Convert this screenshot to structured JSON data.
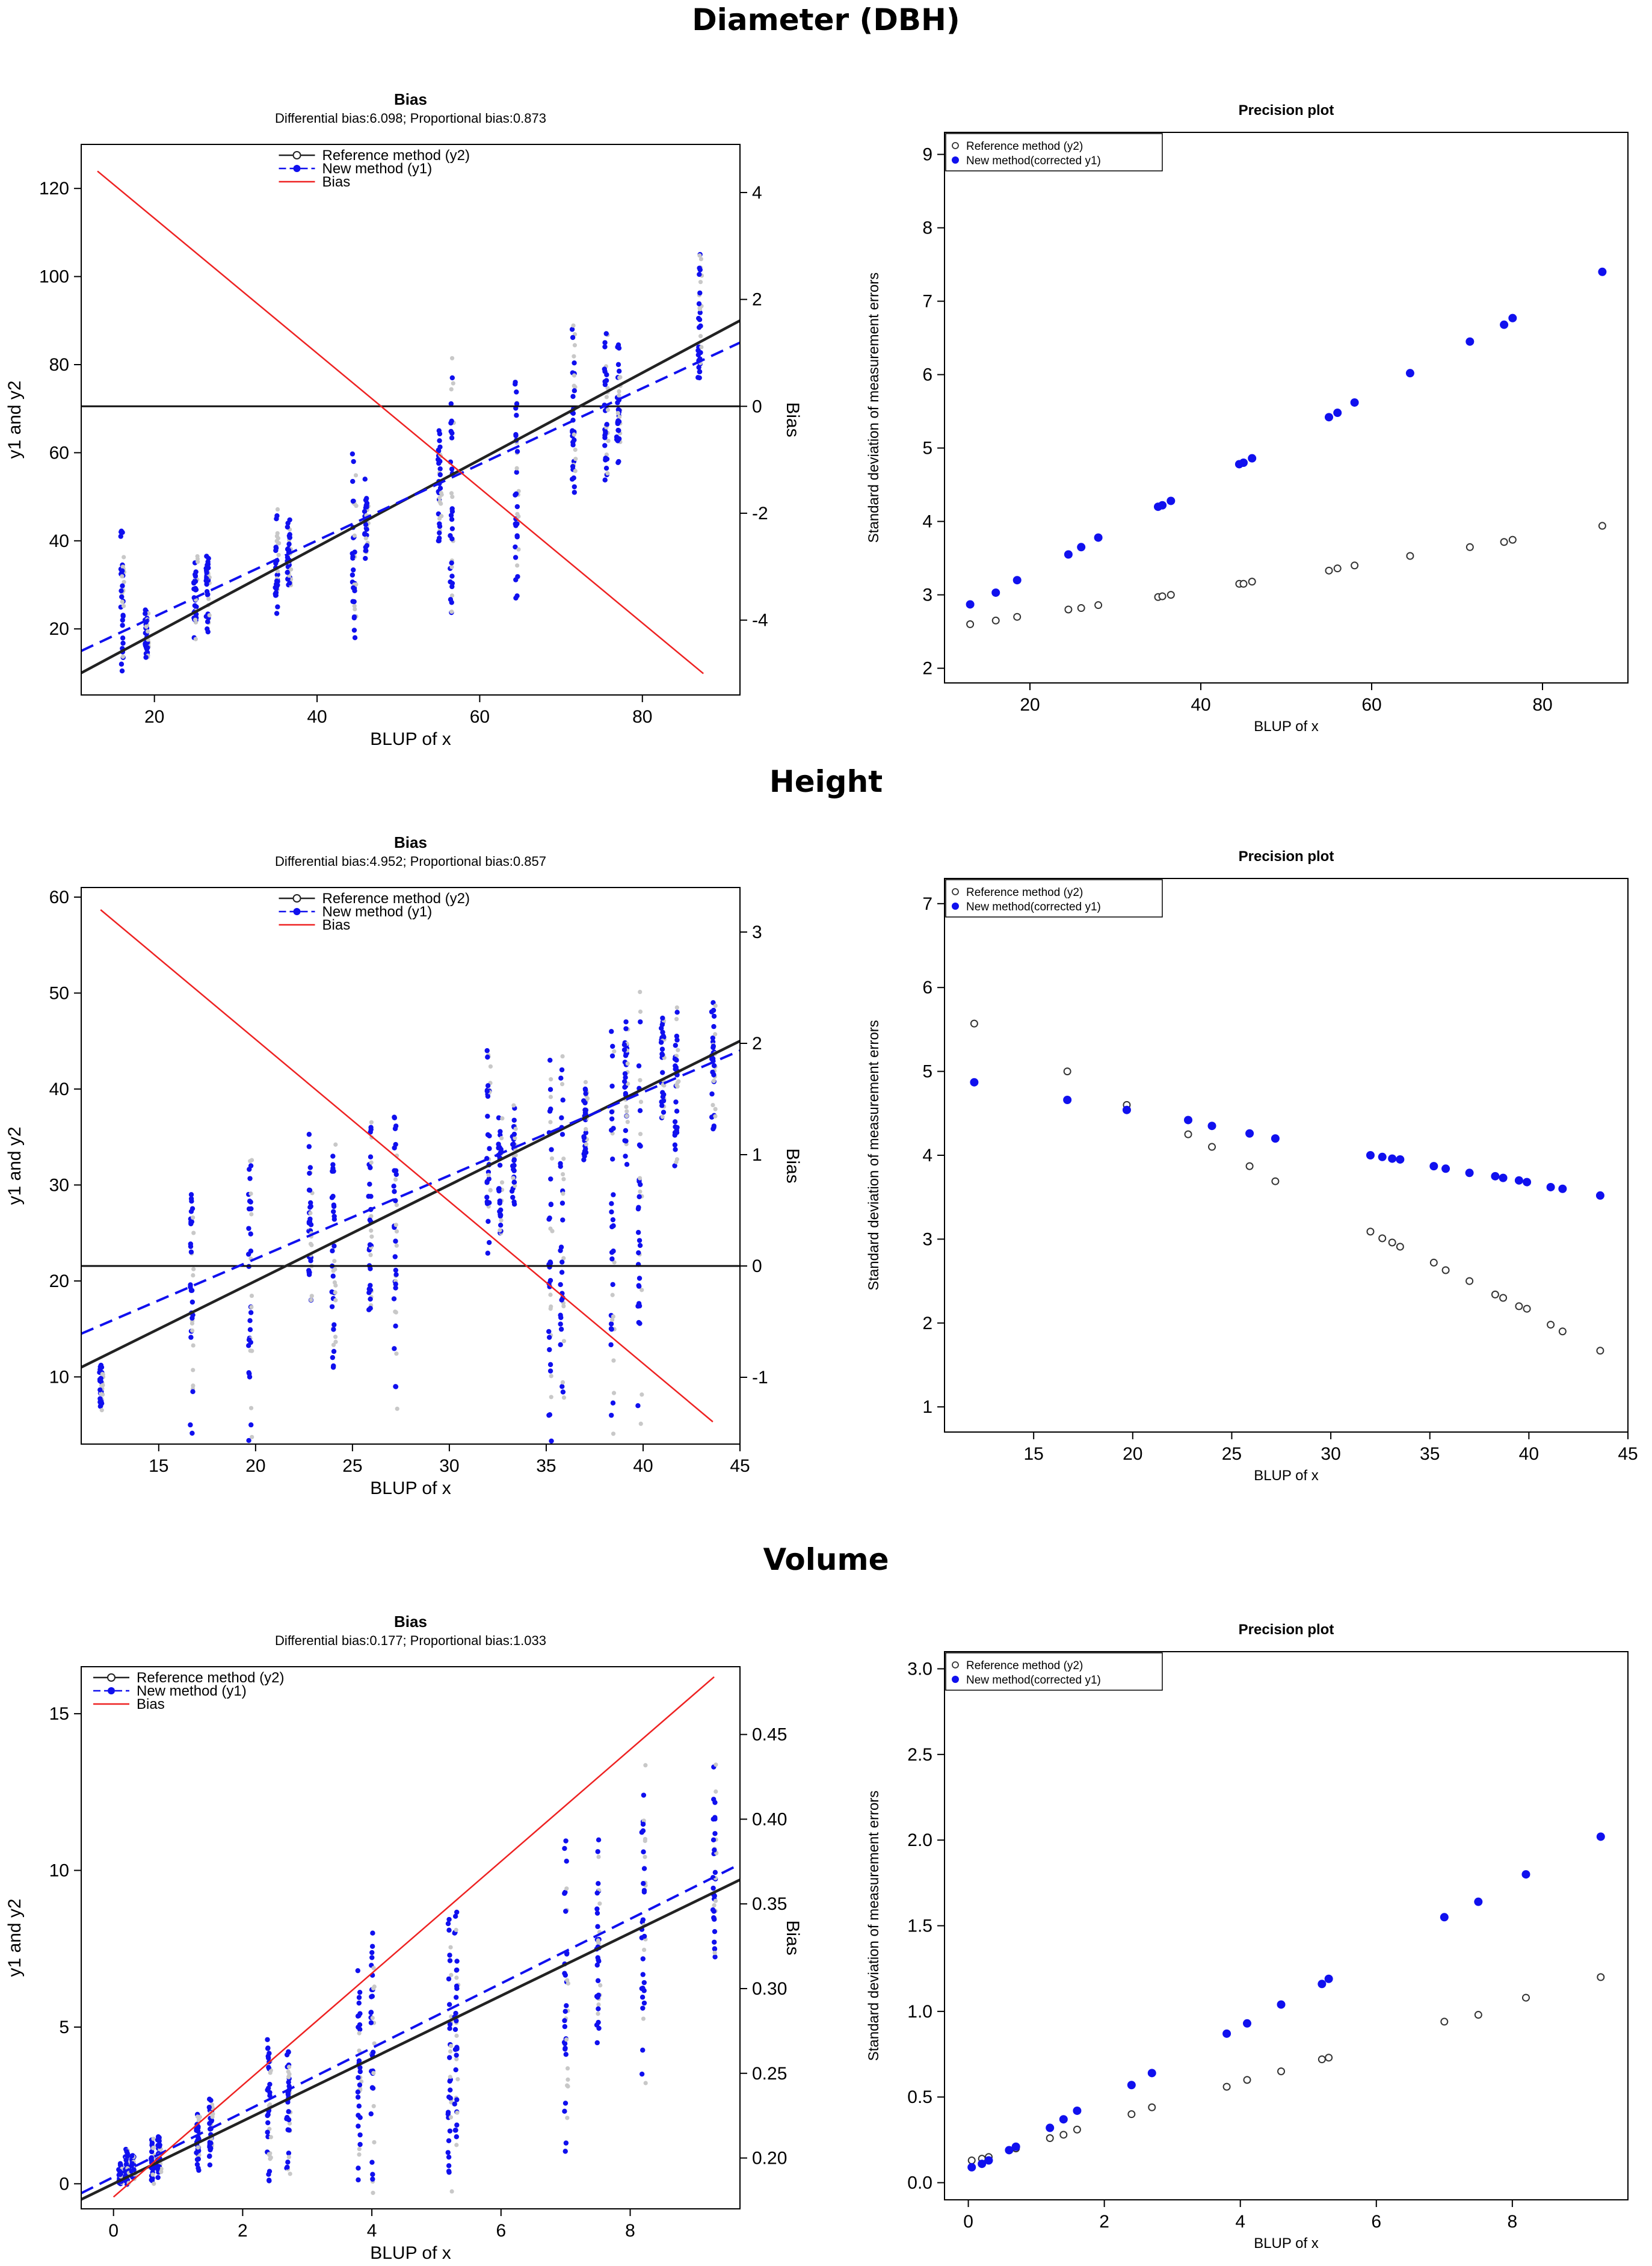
{
  "sections": [
    {
      "title": "Diameter (DBH)"
    },
    {
      "title": "Height"
    },
    {
      "title": "Volume"
    }
  ],
  "colors": {
    "reference": "#222222",
    "new": "#1010ee",
    "bias": "#ee2222",
    "raw_points": "#c8c8c8"
  },
  "chart_data": [
    {
      "type": "scatter",
      "panel": "diameter-bias",
      "title": "Bias",
      "subtitle": "Differential bias:6.098; Proportional bias:0.873",
      "xlabel": "BLUP of x",
      "ylabel": "y1 and y2",
      "y2label": "Bias",
      "xlim": [
        11,
        92
      ],
      "ylim": [
        5,
        130
      ],
      "y2lim": [
        -5.4,
        4.9
      ],
      "xticks": [
        20,
        40,
        60,
        80
      ],
      "yticks": [
        20,
        40,
        60,
        80,
        100,
        120
      ],
      "y2ticks": [
        -4,
        -2,
        0,
        2,
        4
      ],
      "legend": [
        "Reference method (y2)",
        "New method (y1)",
        "Bias"
      ],
      "legend_position": "top-center",
      "clusters": [
        {
          "x": 16,
          "y_min": 12,
          "y_max": 42
        },
        {
          "x": 19,
          "y_min": 14,
          "y_max": 24
        },
        {
          "x": 25,
          "y_min": 18,
          "y_max": 35
        },
        {
          "x": 26.5,
          "y_min": 20,
          "y_max": 36
        },
        {
          "x": 35,
          "y_min": 25,
          "y_max": 45
        },
        {
          "x": 36.5,
          "y_min": 30,
          "y_max": 44
        },
        {
          "x": 44.5,
          "y_min": 18,
          "y_max": 58
        },
        {
          "x": 46,
          "y_min": 36,
          "y_max": 54
        },
        {
          "x": 55,
          "y_min": 40,
          "y_max": 65
        },
        {
          "x": 56.5,
          "y_min": 26,
          "y_max": 77
        },
        {
          "x": 64.5,
          "y_min": 27,
          "y_max": 76
        },
        {
          "x": 71.5,
          "y_min": 51,
          "y_max": 88
        },
        {
          "x": 75.5,
          "y_min": 55,
          "y_max": 85
        },
        {
          "x": 77,
          "y_min": 58,
          "y_max": 84
        },
        {
          "x": 87,
          "y_min": 77,
          "y_max": 105
        }
      ],
      "reference_line": {
        "x": [
          11,
          92
        ],
        "y": [
          10,
          90
        ]
      },
      "new_line": {
        "x": [
          11,
          92
        ],
        "y": [
          15,
          85
        ]
      },
      "bias_line": {
        "x": [
          13,
          87.5
        ],
        "y": [
          4.4,
          -5.0
        ]
      },
      "zero_line": 0
    },
    {
      "type": "scatter",
      "panel": "diameter-precision",
      "title": "Precision plot",
      "xlabel": "BLUP of x",
      "ylabel": "Standard deviation of measurement errors",
      "xlim": [
        10,
        90
      ],
      "ylim": [
        1.8,
        9.3
      ],
      "xticks": [
        20,
        40,
        60,
        80
      ],
      "yticks": [
        2,
        3,
        4,
        5,
        6,
        7,
        8,
        9
      ],
      "legend": [
        "Reference method (y2)",
        "New method(corrected y1)"
      ],
      "legend_position": "top-left",
      "series": [
        {
          "name": "Reference method (y2)",
          "x": [
            13,
            16,
            18.5,
            24.5,
            26,
            28,
            35,
            35.5,
            36.5,
            44.5,
            45,
            46,
            55,
            56,
            58,
            64.5,
            71.5,
            75.5,
            76.5,
            87
          ],
          "y": [
            2.6,
            2.65,
            2.7,
            2.8,
            2.82,
            2.86,
            2.97,
            2.98,
            3.0,
            3.15,
            3.15,
            3.18,
            3.33,
            3.36,
            3.4,
            3.53,
            3.65,
            3.72,
            3.75,
            3.94
          ]
        },
        {
          "name": "New method(corrected y1)",
          "x": [
            13,
            16,
            18.5,
            24.5,
            26,
            28,
            35,
            35.5,
            36.5,
            44.5,
            45,
            46,
            55,
            56,
            58,
            64.5,
            71.5,
            75.5,
            76.5,
            87
          ],
          "y": [
            2.87,
            3.03,
            3.2,
            3.55,
            3.65,
            3.78,
            4.2,
            4.22,
            4.28,
            4.78,
            4.8,
            4.86,
            5.42,
            5.48,
            5.62,
            6.02,
            6.45,
            6.68,
            6.77,
            7.4
          ]
        }
      ]
    },
    {
      "type": "scatter",
      "panel": "height-bias",
      "title": "Bias",
      "subtitle": "Differential bias:4.952; Proportional bias:0.857",
      "xlabel": "BLUP of x",
      "ylabel": "y1 and y2",
      "y2label": "Bias",
      "xlim": [
        11,
        45
      ],
      "ylim": [
        3,
        61
      ],
      "y2lim": [
        -1.6,
        3.4
      ],
      "xticks": [
        15,
        20,
        25,
        30,
        35,
        40,
        45
      ],
      "yticks": [
        10,
        20,
        30,
        40,
        50,
        60
      ],
      "y2ticks": [
        -1,
        0,
        1,
        2,
        3
      ],
      "legend": [
        "Reference method (y2)",
        "New method (y1)",
        "Bias"
      ],
      "legend_position": "top-center",
      "clusters": [
        {
          "x": 12,
          "y_min": 7,
          "y_max": 11
        },
        {
          "x": 16.7,
          "y_min": 5,
          "y_max": 29
        },
        {
          "x": 19.7,
          "y_min": 5,
          "y_max": 32
        },
        {
          "x": 22.8,
          "y_min": 18,
          "y_max": 34
        },
        {
          "x": 24,
          "y_min": 11,
          "y_max": 33
        },
        {
          "x": 25.9,
          "y_min": 17,
          "y_max": 36
        },
        {
          "x": 27.2,
          "y_min": 9,
          "y_max": 37
        },
        {
          "x": 32,
          "y_min": 24,
          "y_max": 44
        },
        {
          "x": 32.6,
          "y_min": 25,
          "y_max": 37
        },
        {
          "x": 33.3,
          "y_min": 28,
          "y_max": 38
        },
        {
          "x": 35.2,
          "y_min": 6,
          "y_max": 43
        },
        {
          "x": 35.8,
          "y_min": 9,
          "y_max": 42
        },
        {
          "x": 37,
          "y_min": 33,
          "y_max": 40
        },
        {
          "x": 38.4,
          "y_min": 6,
          "y_max": 46
        },
        {
          "x": 39.1,
          "y_min": 33,
          "y_max": 47
        },
        {
          "x": 39.8,
          "y_min": 7,
          "y_max": 47
        },
        {
          "x": 41,
          "y_min": 37,
          "y_max": 47
        },
        {
          "x": 41.7,
          "y_min": 32,
          "y_max": 48
        },
        {
          "x": 43.6,
          "y_min": 36,
          "y_max": 49
        }
      ],
      "reference_line": {
        "x": [
          11,
          45
        ],
        "y": [
          11,
          45
        ]
      },
      "new_line": {
        "x": [
          11,
          45
        ],
        "y": [
          14.5,
          44
        ]
      },
      "bias_line": {
        "x": [
          12,
          43.6
        ],
        "y": [
          3.2,
          -1.4
        ]
      },
      "zero_line": 0
    },
    {
      "type": "scatter",
      "panel": "height-precision",
      "title": "Precision plot",
      "xlabel": "BLUP of x",
      "ylabel": "Standard deviation of measurement errors",
      "xlim": [
        10.5,
        45
      ],
      "ylim": [
        0.7,
        7.3
      ],
      "xticks": [
        15,
        20,
        25,
        30,
        35,
        40,
        45
      ],
      "yticks": [
        1,
        2,
        3,
        4,
        5,
        6,
        7
      ],
      "legend": [
        "Reference method (y2)",
        "New method(corrected y1)"
      ],
      "legend_position": "top-left",
      "series": [
        {
          "name": "Reference method (y2)",
          "x": [
            12,
            16.7,
            19.7,
            22.8,
            24,
            25.9,
            27.2,
            32,
            32.6,
            33.1,
            33.5,
            35.2,
            35.8,
            37,
            38.3,
            38.7,
            39.5,
            39.9,
            41.1,
            41.7,
            43.6
          ],
          "y": [
            5.57,
            5.0,
            4.6,
            4.25,
            4.1,
            3.87,
            3.69,
            3.09,
            3.01,
            2.96,
            2.91,
            2.72,
            2.63,
            2.5,
            2.34,
            2.3,
            2.2,
            2.17,
            1.98,
            1.9,
            1.67
          ]
        },
        {
          "name": "New method(corrected y1)",
          "x": [
            12,
            16.7,
            19.7,
            22.8,
            24,
            25.9,
            27.2,
            32,
            32.6,
            33.1,
            33.5,
            35.2,
            35.8,
            37,
            38.3,
            38.7,
            39.5,
            39.9,
            41.1,
            41.7,
            43.6
          ],
          "y": [
            4.87,
            4.66,
            4.54,
            4.42,
            4.35,
            4.26,
            4.2,
            4.0,
            3.98,
            3.96,
            3.95,
            3.87,
            3.84,
            3.79,
            3.75,
            3.73,
            3.7,
            3.68,
            3.62,
            3.6,
            3.52
          ]
        }
      ]
    },
    {
      "type": "scatter",
      "panel": "volume-bias",
      "title": "Bias",
      "subtitle": "Differential bias:0.177; Proportional bias:1.033",
      "xlabel": "BLUP of x",
      "ylabel": "y1 and y2",
      "y2label": "Bias",
      "xlim": [
        -0.5,
        9.7
      ],
      "ylim": [
        -0.8,
        16.5
      ],
      "y2lim": [
        0.17,
        0.49
      ],
      "xticks": [
        0,
        2,
        4,
        6,
        8
      ],
      "yticks": [
        0,
        5,
        10,
        15
      ],
      "y2ticks": [
        0.2,
        0.25,
        0.3,
        0.35,
        0.4,
        0.45
      ],
      "legend": [
        "Reference method (y2)",
        "New method (y1)",
        "Bias"
      ],
      "legend_position": "top-left",
      "clusters": [
        {
          "x": 0.1,
          "y_min": 0.0,
          "y_max": 0.6
        },
        {
          "x": 0.2,
          "y_min": 0.1,
          "y_max": 1.1
        },
        {
          "x": 0.3,
          "y_min": 0.2,
          "y_max": 0.9
        },
        {
          "x": 0.6,
          "y_min": 0.1,
          "y_max": 1.3
        },
        {
          "x": 0.7,
          "y_min": 0.2,
          "y_max": 1.5
        },
        {
          "x": 1.3,
          "y_min": 0.5,
          "y_max": 2.2
        },
        {
          "x": 1.5,
          "y_min": 0.6,
          "y_max": 2.7
        },
        {
          "x": 2.4,
          "y_min": 0.3,
          "y_max": 4.6
        },
        {
          "x": 2.7,
          "y_min": 0.5,
          "y_max": 4.2
        },
        {
          "x": 3.8,
          "y_min": 0.5,
          "y_max": 6.8
        },
        {
          "x": 4.0,
          "y_min": 0.3,
          "y_max": 8.0
        },
        {
          "x": 5.2,
          "y_min": 0.4,
          "y_max": 8.3
        },
        {
          "x": 5.3,
          "y_min": 1.5,
          "y_max": 8.0
        },
        {
          "x": 7.0,
          "y_min": 1.3,
          "y_max": 10.7
        },
        {
          "x": 7.5,
          "y_min": 4.5,
          "y_max": 10.6
        },
        {
          "x": 8.2,
          "y_min": 3.5,
          "y_max": 12.4
        },
        {
          "x": 9.3,
          "y_min": 7.5,
          "y_max": 13.3
        }
      ],
      "reference_line": {
        "x": [
          -0.5,
          9.7
        ],
        "y": [
          -0.5,
          9.7
        ]
      },
      "new_line": {
        "x": [
          -0.5,
          9.7
        ],
        "y": [
          -0.3,
          10.2
        ]
      },
      "bias_line": {
        "x": [
          0.0,
          9.3
        ],
        "y": [
          0.177,
          0.484
        ]
      },
      "zero_line": null
    },
    {
      "type": "scatter",
      "panel": "volume-precision",
      "title": "Precision plot",
      "xlabel": "BLUP of x",
      "ylabel": "Standard deviation of measurement errors",
      "xlim": [
        -0.35,
        9.7
      ],
      "ylim": [
        -0.1,
        3.1
      ],
      "xticks": [
        0,
        2,
        4,
        6,
        8
      ],
      "yticks": [
        0.0,
        0.5,
        1.0,
        1.5,
        2.0,
        2.5,
        3.0
      ],
      "legend": [
        "Reference method (y2)",
        "New method(corrected y1)"
      ],
      "legend_position": "top-left",
      "series": [
        {
          "name": "Reference method (y2)",
          "x": [
            0.05,
            0.2,
            0.3,
            0.6,
            0.7,
            1.2,
            1.4,
            1.6,
            2.4,
            2.7,
            3.8,
            4.1,
            4.6,
            5.2,
            5.3,
            7.0,
            7.5,
            8.2,
            9.3
          ],
          "y": [
            0.13,
            0.14,
            0.15,
            0.19,
            0.2,
            0.26,
            0.28,
            0.31,
            0.4,
            0.44,
            0.56,
            0.6,
            0.65,
            0.72,
            0.73,
            0.94,
            0.98,
            1.08,
            1.2
          ]
        },
        {
          "name": "New method(corrected y1)",
          "x": [
            0.05,
            0.2,
            0.3,
            0.6,
            0.7,
            1.2,
            1.4,
            1.6,
            2.4,
            2.7,
            3.8,
            4.1,
            4.6,
            5.2,
            5.3,
            7.0,
            7.5,
            8.2,
            9.3
          ],
          "y": [
            0.09,
            0.11,
            0.13,
            0.19,
            0.21,
            0.32,
            0.37,
            0.42,
            0.57,
            0.64,
            0.87,
            0.93,
            1.04,
            1.16,
            1.19,
            1.55,
            1.64,
            1.8,
            2.02
          ]
        }
      ]
    }
  ]
}
